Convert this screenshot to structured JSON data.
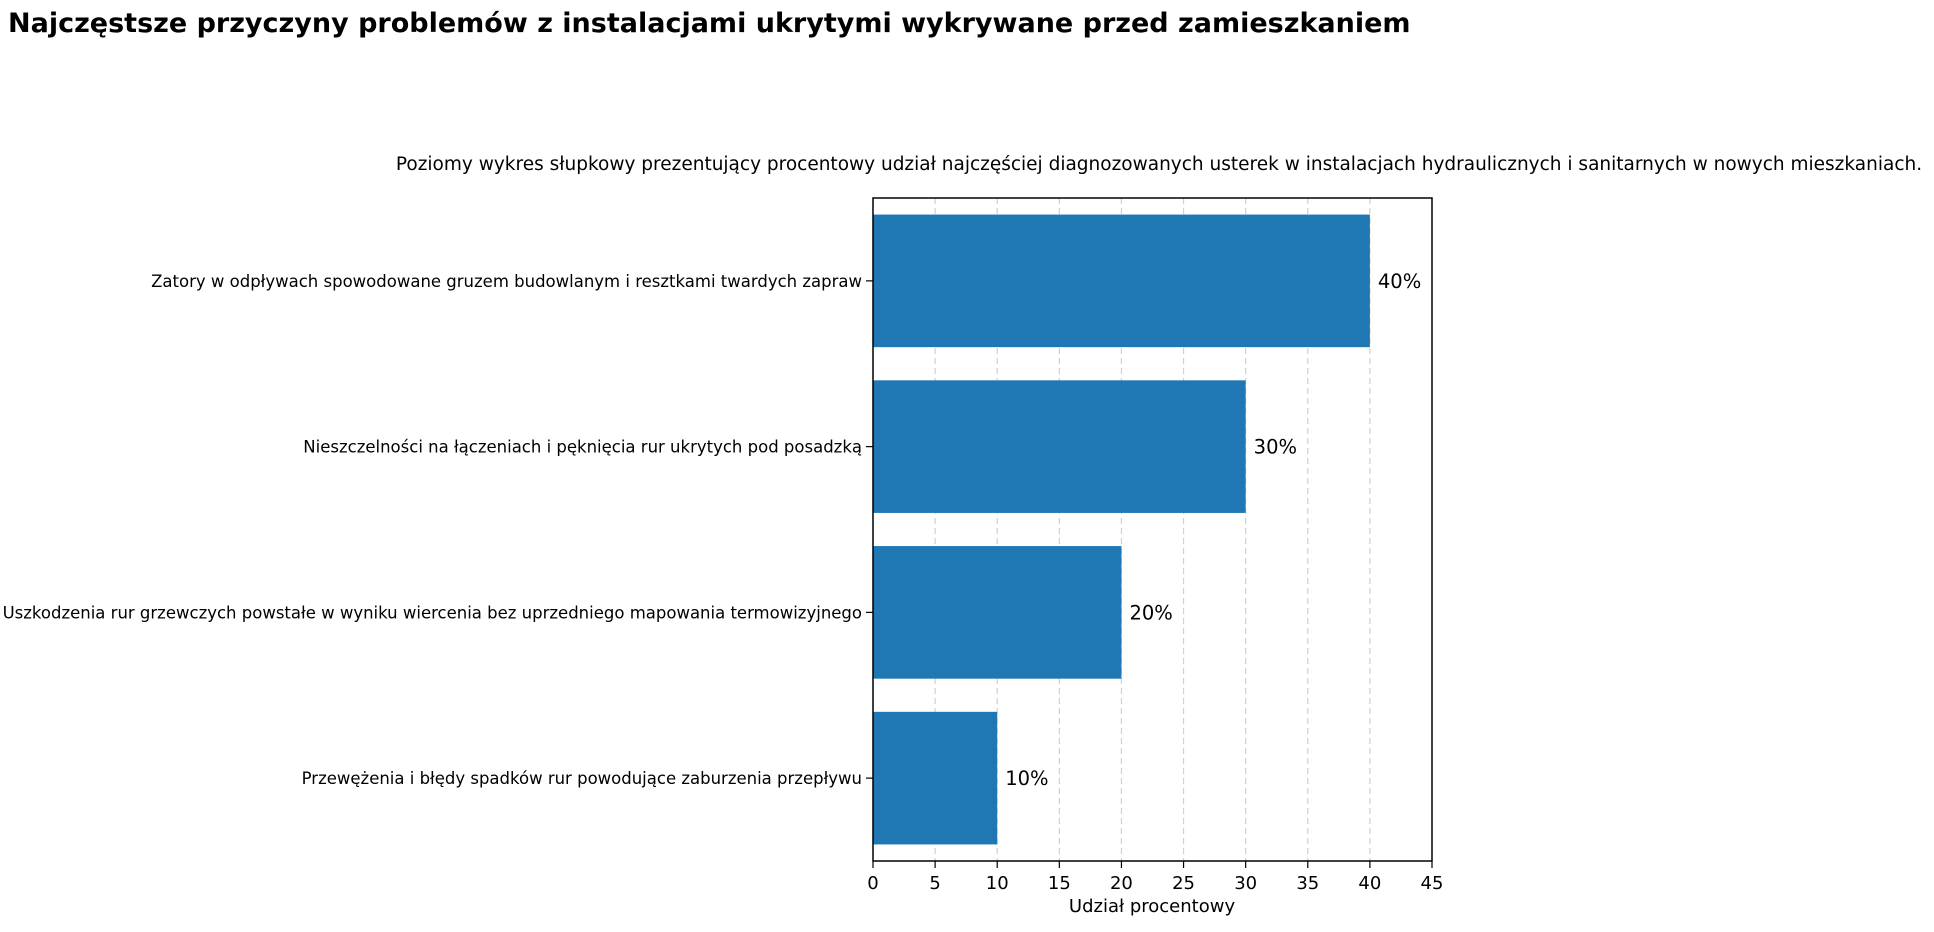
{
  "chart_data": {
    "type": "bar",
    "orientation": "horizontal",
    "title": "Najczęstsze przyczyny problemów z instalacjami ukrytymi wykrywane przed zamieszkaniem",
    "subtitle": "Poziomy wykres słupkowy prezentujący procentowy udział najczęściej diagnozowanych usterek w instalacjach hydraulicznych i sanitarnych w nowych mieszkaniach.",
    "categories": [
      "Zatory w odpływach spowodowane gruzem budowlanym i resztkami twardych zapraw",
      "Nieszczelności na łączeniach i pęknięcia rur ukrytych pod posadzką",
      "Uszkodzenia rur grzewczych powstałe w wyniku wiercenia bez uprzedniego mapowania termowizyjnego",
      "Przewężenia i błędy spadków rur powodujące zaburzenia przepływu"
    ],
    "values": [
      40,
      30,
      20,
      10
    ],
    "data_labels": [
      "40%",
      "30%",
      "20%",
      "10%"
    ],
    "xlabel": "Udział procentowy",
    "ylabel": "",
    "xlim": [
      0,
      45
    ],
    "xticks": [
      0,
      5,
      10,
      15,
      20,
      25,
      30,
      35,
      40,
      45
    ],
    "grid": "vertical dashed",
    "legend": "none",
    "bar_color": "#1f77b4",
    "grid_color": "#d0d0d0"
  }
}
